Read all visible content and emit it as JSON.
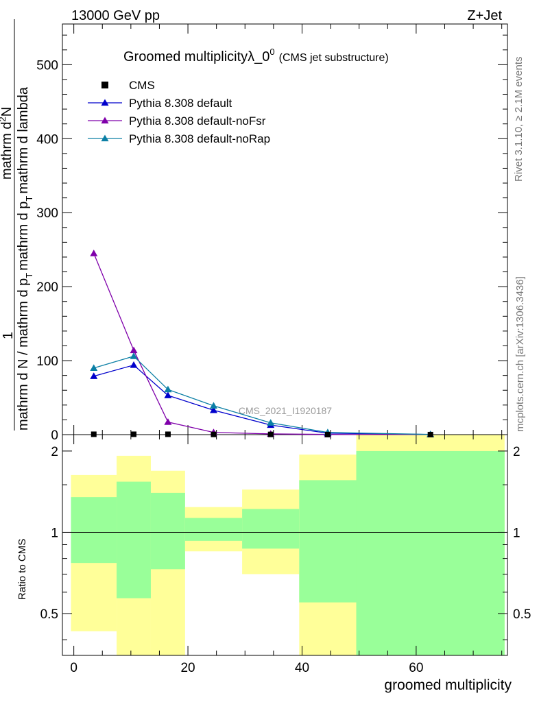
{
  "header": {
    "energy_label": "13000 GeV pp",
    "process_label": "Z+Jet"
  },
  "side_labels": {
    "rivet": "Rivet 3.1.10, ≥ 2.1M events",
    "mcplots": "mcplots.cern.ch [arXiv:1306.3436]"
  },
  "watermark": "CMS_2021_I1920187",
  "chart_data": {
    "type": "line",
    "title_main": "Groomed multiplicityλ_0",
    "title_sup": "0",
    "title_small": "(CMS jet substructure)",
    "xlabel": "groomed multiplicity",
    "ylabel_numerator": "1",
    "ylabel_left": "mathrm d N / mathrm d p",
    "ylabel_mid": "T",
    "ylabel_right": "mathrm d p",
    "ylabel_mid2": "T",
    "ylabel_end": "mathrm d lambda",
    "ylabel_top": "mathrm d",
    "ylabel_top_sup": "2",
    "ylabel_top_end": "N",
    "ratio_ylabel": "Ratio to CMS",
    "xlim": [
      -2,
      76
    ],
    "ylim": [
      0,
      555
    ],
    "ratio_ylim": [
      0.35,
      2.3
    ],
    "x_ticks": [
      "0",
      "20",
      "40",
      "60"
    ],
    "x_tick_values": [
      0,
      20,
      40,
      60
    ],
    "y_ticks": [
      "0",
      "100",
      "200",
      "300",
      "400",
      "500"
    ],
    "y_tick_values": [
      0,
      100,
      200,
      300,
      400,
      500
    ],
    "ratio_y_ticks": [
      "0.5",
      "1",
      "2"
    ],
    "ratio_y_tick_values": [
      0.5,
      1,
      2
    ],
    "legend_position": "top-left",
    "legend": [
      {
        "name": "CMS",
        "marker": "square",
        "color": "#000000"
      },
      {
        "name": "Pythia 8.308 default",
        "marker": "triangle",
        "color": "#0000cc"
      },
      {
        "name": "Pythia 8.308 default-noFsr",
        "marker": "triangle",
        "color": "#7f00aa"
      },
      {
        "name": "Pythia 8.308 default-noRap",
        "marker": "triangle",
        "color": "#0b7fa5"
      }
    ],
    "cms": {
      "x": [
        3.5,
        10.5,
        16.5,
        24.5,
        34.5,
        44.5,
        62.5
      ],
      "y": [
        0.5,
        0.5,
        0.5,
        0.3,
        0.3,
        0.1,
        0.05
      ]
    },
    "series": [
      {
        "name": "Pythia 8.308 default",
        "color": "#0000cc",
        "x": [
          3.5,
          10.5,
          16.5,
          24.5,
          34.5,
          44.5,
          62.5
        ],
        "y": [
          79,
          94,
          53,
          33,
          13,
          2,
          0.2
        ]
      },
      {
        "name": "Pythia 8.308 default-noFsr",
        "color": "#7f00aa",
        "x": [
          3.5,
          10.5,
          16.5,
          24.5,
          34.5,
          44.5,
          62.5
        ],
        "y": [
          245,
          114,
          17,
          3,
          1,
          0.3,
          0.1
        ]
      },
      {
        "name": "Pythia 8.308 default-noRap",
        "color": "#0b7fa5",
        "x": [
          3.5,
          10.5,
          16.5,
          24.5,
          34.5,
          44.5,
          62.5
        ],
        "y": [
          90,
          106,
          61,
          39,
          16,
          3,
          0.3
        ]
      }
    ],
    "ratio_bands": [
      {
        "x0": -0.5,
        "x1": 7.5,
        "yellow": [
          0.43,
          1.63
        ],
        "green": [
          0.77,
          1.35
        ]
      },
      {
        "x0": 7.5,
        "x1": 13.5,
        "yellow": [
          0.35,
          1.92
        ],
        "green": [
          0.57,
          1.54
        ]
      },
      {
        "x0": 13.5,
        "x1": 19.5,
        "yellow": [
          0.35,
          1.69
        ],
        "green": [
          0.73,
          1.4
        ]
      },
      {
        "x0": 19.5,
        "x1": 29.5,
        "yellow": [
          0.85,
          1.24
        ],
        "green": [
          0.93,
          1.13
        ]
      },
      {
        "x0": 29.5,
        "x1": 39.5,
        "yellow": [
          0.7,
          1.44
        ],
        "green": [
          0.87,
          1.22
        ]
      },
      {
        "x0": 39.5,
        "x1": 49.5,
        "yellow": [
          0.35,
          1.94
        ],
        "green": [
          0.55,
          1.56
        ]
      },
      {
        "x0": 49.5,
        "x1": 75.5,
        "yellow": [
          0.35,
          2.3
        ],
        "green": [
          0.35,
          2.0
        ]
      }
    ]
  }
}
